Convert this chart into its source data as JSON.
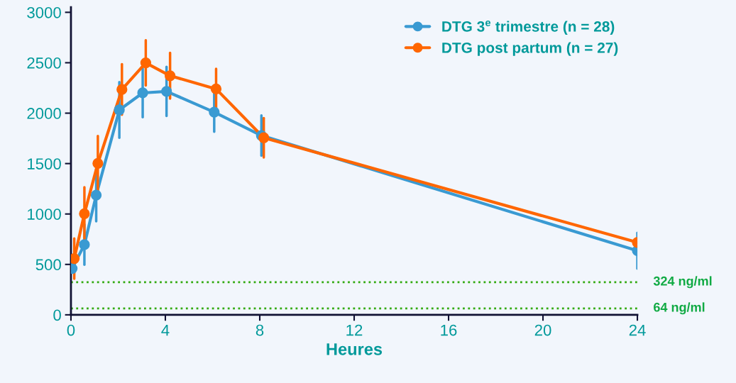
{
  "chart_data": {
    "type": "line",
    "xlabel": "Heures",
    "xlim": [
      0,
      24
    ],
    "xticks": [
      0,
      4,
      8,
      12,
      16,
      20,
      24
    ],
    "ylim": [
      0,
      3050
    ],
    "yticks": [
      0,
      500,
      1000,
      1500,
      2000,
      2500,
      3000
    ],
    "series": [
      {
        "name": "DTG 3$^{e}$ trimestre (n = 28)",
        "color": "#3a9ad2",
        "x": [
          0.05,
          0.57,
          1.07,
          2.05,
          3.04,
          4.05,
          6.07,
          8.07,
          24
        ],
        "values": [
          459,
          696,
          1187,
          2032,
          2201,
          2216,
          2010,
          1778,
          636
        ],
        "errors": [
          null,
          200,
          260,
          276,
          242,
          244,
          194,
          200,
          178
        ]
      },
      {
        "name": "DTG post partum (n = 27)",
        "color": "#ff6600",
        "x": [
          0.14,
          0.57,
          1.14,
          2.16,
          3.17,
          4.2,
          6.15,
          8.17,
          24
        ],
        "values": [
          558,
          1003,
          1502,
          2235,
          2499,
          2371,
          2240,
          1756,
          718
        ],
        "errors": [
          200,
          263,
          272,
          250,
          224,
          227,
          200,
          196,
          null
        ]
      }
    ],
    "ref_lines": [
      {
        "axis": "y",
        "value": 324,
        "label": "324 ng/ml",
        "color": "#33aa11",
        "line_style": "dotted"
      },
      {
        "axis": "y",
        "value": 64,
        "label": "64 ng/ml",
        "color": "#33aa11",
        "line_style": "dotted"
      }
    ],
    "marker": "circle",
    "line_style": "solid",
    "legend": "top right",
    "grid": false
  }
}
